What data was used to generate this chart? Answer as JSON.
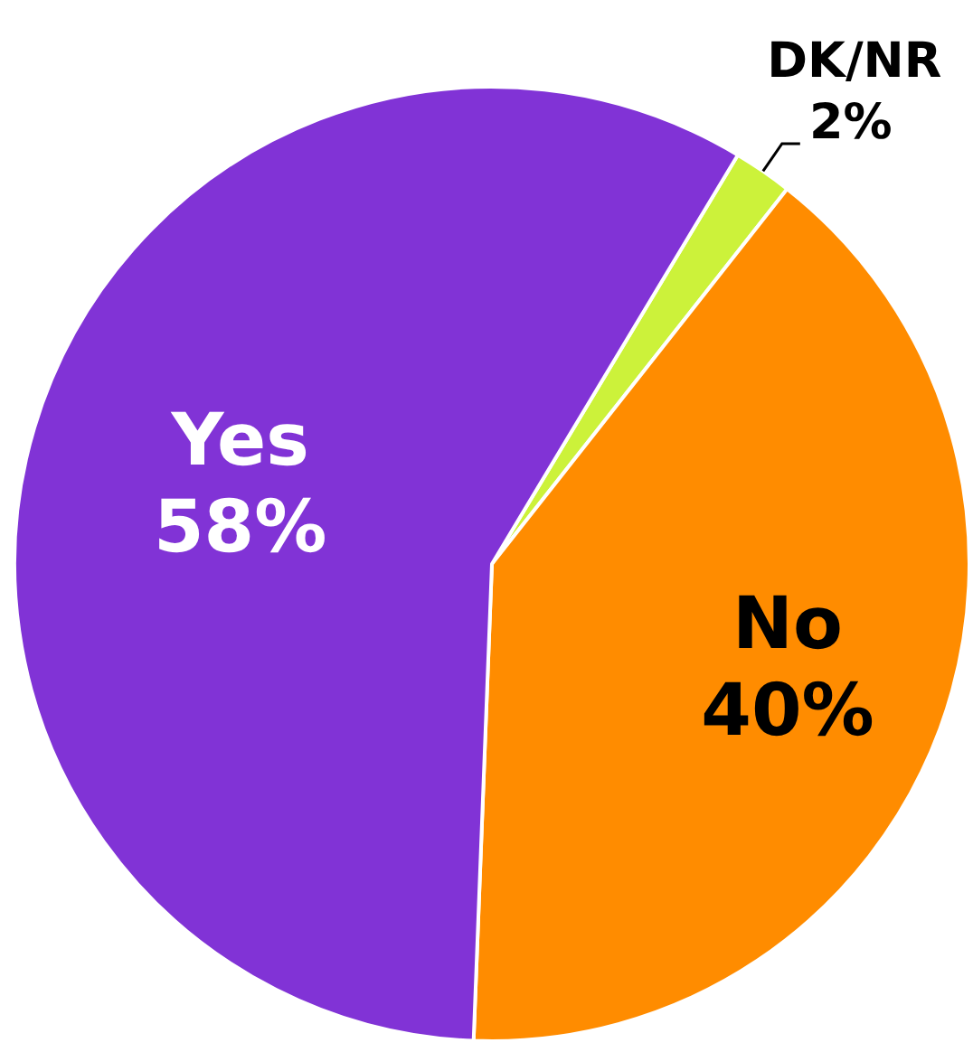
{
  "chart_data": {
    "type": "pie",
    "categories": [
      "DK/NR",
      "No",
      "Yes"
    ],
    "values": [
      2,
      40,
      58
    ],
    "colors": [
      "#ccf23a",
      "#ff8c00",
      "#8133d6"
    ],
    "value_labels": [
      "2%",
      "40%",
      "58%"
    ],
    "legend": false
  }
}
